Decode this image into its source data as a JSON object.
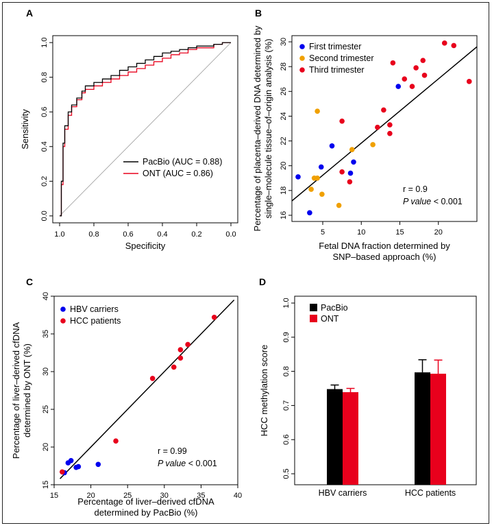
{
  "chart_data": [
    {
      "panel": "A",
      "type": "line",
      "xlabel": "Specificity",
      "ylabel": "Sensitivity",
      "xlim": [
        1.0,
        0.0
      ],
      "ylim": [
        0.0,
        1.0
      ],
      "xticks": [
        "1.0",
        "0.8",
        "0.6",
        "0.4",
        "0.2",
        "0.0"
      ],
      "yticks": [
        "0.0",
        "0.2",
        "0.4",
        "0.6",
        "0.8",
        "1.0"
      ],
      "legend": [
        "PacBio (AUC = 0.88)",
        "ONT   (AUC = 0.86)"
      ],
      "legend_position": "bottom-right",
      "series": [
        {
          "name": "PacBio (AUC = 0.88)",
          "color": "#000000",
          "points": [
            [
              1.0,
              0.0
            ],
            [
              0.99,
              0.2
            ],
            [
              0.98,
              0.42
            ],
            [
              0.97,
              0.52
            ],
            [
              0.95,
              0.6
            ],
            [
              0.93,
              0.64
            ],
            [
              0.9,
              0.68
            ],
            [
              0.87,
              0.72
            ],
            [
              0.85,
              0.75
            ],
            [
              0.8,
              0.77
            ],
            [
              0.75,
              0.79
            ],
            [
              0.7,
              0.81
            ],
            [
              0.65,
              0.84
            ],
            [
              0.6,
              0.86
            ],
            [
              0.55,
              0.88
            ],
            [
              0.5,
              0.9
            ],
            [
              0.45,
              0.92
            ],
            [
              0.4,
              0.94
            ],
            [
              0.35,
              0.95
            ],
            [
              0.3,
              0.96
            ],
            [
              0.25,
              0.97
            ],
            [
              0.2,
              0.98
            ],
            [
              0.1,
              0.99
            ],
            [
              0.05,
              1.0
            ],
            [
              0.0,
              1.0
            ]
          ]
        },
        {
          "name": "ONT   (AUC = 0.86)",
          "color": "#e8001c",
          "points": [
            [
              1.0,
              0.0
            ],
            [
              0.99,
              0.18
            ],
            [
              0.98,
              0.4
            ],
            [
              0.97,
              0.5
            ],
            [
              0.95,
              0.58
            ],
            [
              0.93,
              0.63
            ],
            [
              0.9,
              0.67
            ],
            [
              0.87,
              0.71
            ],
            [
              0.85,
              0.73
            ],
            [
              0.8,
              0.75
            ],
            [
              0.75,
              0.77
            ],
            [
              0.7,
              0.79
            ],
            [
              0.65,
              0.81
            ],
            [
              0.6,
              0.83
            ],
            [
              0.55,
              0.85
            ],
            [
              0.5,
              0.87
            ],
            [
              0.45,
              0.89
            ],
            [
              0.4,
              0.91
            ],
            [
              0.35,
              0.93
            ],
            [
              0.3,
              0.94
            ],
            [
              0.25,
              0.96
            ],
            [
              0.2,
              0.97
            ],
            [
              0.1,
              0.99
            ],
            [
              0.05,
              1.0
            ],
            [
              0.0,
              1.0
            ]
          ]
        },
        {
          "name": "reference",
          "color": "#999999",
          "points": [
            [
              1.0,
              0.0
            ],
            [
              0.0,
              1.0
            ]
          ]
        }
      ]
    },
    {
      "panel": "B",
      "type": "scatter",
      "xlabel_lines": [
        "Fetal DNA fraction determined by",
        "SNP–based approach (%)"
      ],
      "ylabel_lines": [
        "Percentage of placenta–derived DNA determined by",
        "single–molecule tissue–of–origin analysis (%)"
      ],
      "xlim": [
        1,
        25
      ],
      "ylim": [
        15.5,
        30.5
      ],
      "xticks": [
        "5",
        "10",
        "15",
        "20"
      ],
      "yticks": [
        "16",
        "18",
        "20",
        "22",
        "24",
        "26",
        "28",
        "30"
      ],
      "legend": [
        "First trimester",
        "Second trimester",
        "Third trimester"
      ],
      "legend_position": "top-left",
      "fit_line": [
        [
          0.5,
          16.9
        ],
        [
          25,
          29.6
        ]
      ],
      "stats": {
        "r": "r = 0.9",
        "p_label": "P value",
        "p_rest": " < 0.001"
      },
      "series": [
        {
          "name": "First trimester",
          "color": "#0000ee",
          "points": [
            [
              1.8,
              19.1
            ],
            [
              3.3,
              16.2
            ],
            [
              4.8,
              19.9
            ],
            [
              6.2,
              21.6
            ],
            [
              8.6,
              19.4
            ],
            [
              9.0,
              20.3
            ],
            [
              14.8,
              26.4
            ]
          ]
        },
        {
          "name": "Second trimester",
          "color": "#f0a000",
          "points": [
            [
              3.5,
              18.1
            ],
            [
              3.9,
              19.0
            ],
            [
              4.3,
              19.0
            ],
            [
              4.3,
              24.4
            ],
            [
              4.9,
              17.7
            ],
            [
              7.1,
              16.8
            ],
            [
              8.8,
              21.3
            ],
            [
              11.5,
              21.7
            ]
          ]
        },
        {
          "name": "Third trimester",
          "color": "#e8001c",
          "points": [
            [
              7.5,
              23.6
            ],
            [
              7.5,
              19.5
            ],
            [
              8.5,
              18.7
            ],
            [
              12.1,
              23.1
            ],
            [
              12.9,
              24.5
            ],
            [
              13.7,
              23.3
            ],
            [
              13.7,
              22.6
            ],
            [
              14.1,
              28.3
            ],
            [
              15.6,
              27.0
            ],
            [
              16.6,
              26.4
            ],
            [
              17.1,
              27.9
            ],
            [
              18.0,
              28.5
            ],
            [
              18.2,
              27.3
            ],
            [
              20.8,
              29.9
            ],
            [
              22.0,
              29.7
            ],
            [
              24.0,
              26.8
            ]
          ]
        }
      ]
    },
    {
      "panel": "C",
      "type": "scatter",
      "xlabel_lines": [
        "Percentage of liver–derived cfDNA",
        "determined by PacBio (%)"
      ],
      "ylabel_lines": [
        "Percentage of liver–derived cfDNA",
        "determined by ONT (%)"
      ],
      "xlim": [
        15,
        40
      ],
      "ylim": [
        15,
        40
      ],
      "xticks": [
        "15",
        "20",
        "25",
        "30",
        "35",
        "40"
      ],
      "yticks": [
        "15",
        "20",
        "25",
        "30",
        "35",
        "40"
      ],
      "legend": [
        "HBV carriers",
        "HCC patients"
      ],
      "legend_position": "top-left",
      "fit_line": [
        [
          15.8,
          15.8
        ],
        [
          39.5,
          39.5
        ]
      ],
      "stats": {
        "r": "r = 0.99",
        "p_label": "P value",
        "p_rest": " < 0.001"
      },
      "series": [
        {
          "name": "HBV carriers",
          "color": "#0000ee",
          "points": [
            [
              16.4,
              16.6
            ],
            [
              16.9,
              17.9
            ],
            [
              17.3,
              18.2
            ],
            [
              18.0,
              17.3
            ],
            [
              18.3,
              17.4
            ],
            [
              21.0,
              17.7
            ]
          ]
        },
        {
          "name": "HCC patients",
          "color": "#e8001c",
          "points": [
            [
              16.1,
              16.7
            ],
            [
              23.4,
              20.8
            ],
            [
              28.4,
              29.1
            ],
            [
              31.3,
              30.6
            ],
            [
              32.2,
              31.8
            ],
            [
              32.2,
              32.9
            ],
            [
              33.2,
              33.6
            ],
            [
              36.8,
              37.2
            ]
          ]
        }
      ]
    },
    {
      "panel": "D",
      "type": "bar",
      "ylabel": "HCC methylation score",
      "ylim": [
        0.5,
        1.0
      ],
      "yticks": [
        "0.5",
        "0.6",
        "0.7",
        "0.8",
        "0.9",
        "1.0"
      ],
      "categories": [
        "HBV carriers",
        "HCC patients"
      ],
      "legend": [
        "PacBio",
        "ONT"
      ],
      "legend_position": "top-left",
      "series": [
        {
          "name": "PacBio",
          "color": "#000000",
          "values": [
            0.748,
            0.797
          ],
          "errors": [
            0.012,
            0.037
          ]
        },
        {
          "name": "ONT",
          "color": "#e8001c",
          "values": [
            0.739,
            0.793
          ],
          "errors": [
            0.011,
            0.04
          ]
        }
      ]
    }
  ]
}
